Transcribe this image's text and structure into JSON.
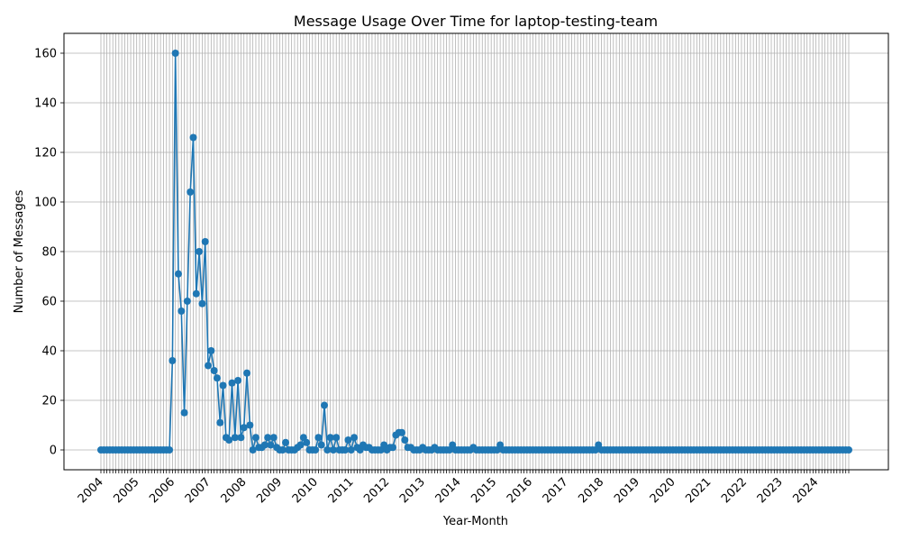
{
  "chart_data": {
    "type": "line",
    "title": "Message Usage Over Time for laptop-testing-team",
    "xlabel": "Year-Month",
    "ylabel": "Number of Messages",
    "x_start": "2004-01",
    "x_end": "2024-12",
    "ylim": [
      -8,
      168
    ],
    "yticks": [
      0,
      20,
      40,
      60,
      80,
      100,
      120,
      140,
      160
    ],
    "xtick_labels": [
      "2004",
      "2005",
      "2006",
      "2007",
      "2008",
      "2009",
      "2010",
      "2011",
      "2012",
      "2013",
      "2014",
      "2015",
      "2016",
      "2017",
      "2018",
      "2019",
      "2020",
      "2021",
      "2022",
      "2023",
      "2024"
    ],
    "grid": true,
    "marker": "circle",
    "color": "#1f77b4",
    "series": [
      {
        "values": [
          0,
          0,
          0,
          0,
          0,
          0,
          0,
          0,
          0,
          0,
          0,
          0,
          0,
          0,
          0,
          0,
          0,
          0,
          0,
          0,
          0,
          0,
          0,
          0,
          36,
          160,
          71,
          56,
          15,
          60,
          104,
          126,
          63,
          80,
          59,
          84,
          34,
          40,
          32,
          29,
          11,
          26,
          5,
          4,
          27,
          5,
          28,
          5,
          9,
          31,
          10,
          0,
          5,
          1,
          1,
          2,
          5,
          2,
          5,
          1,
          0,
          0,
          3,
          0,
          0,
          0,
          1,
          2,
          5,
          3,
          0,
          0,
          0,
          5,
          2,
          18,
          0,
          5,
          0,
          5,
          0,
          0,
          0,
          4,
          0,
          5,
          1,
          0,
          2,
          1,
          1,
          0,
          0,
          0,
          0,
          2,
          0,
          1,
          1,
          6,
          7,
          7,
          4,
          1,
          1,
          0,
          0,
          0,
          1,
          0,
          0,
          0,
          1,
          0,
          0,
          0,
          0,
          0,
          2,
          0,
          0,
          0,
          0,
          0,
          0,
          1,
          0,
          0,
          0,
          0,
          0,
          0,
          0,
          0,
          2,
          0,
          0,
          0,
          0,
          0,
          0,
          0,
          0,
          0,
          0,
          0,
          0,
          0,
          0,
          0,
          0,
          0,
          0,
          0,
          0,
          0,
          0,
          0,
          0,
          0,
          0,
          0,
          0,
          0,
          0,
          0,
          0,
          2,
          0,
          0,
          0,
          0,
          0,
          0,
          0,
          0,
          0,
          0,
          0,
          0,
          0,
          0,
          0,
          0,
          0,
          0,
          0,
          0,
          0,
          0,
          0,
          0,
          0,
          0,
          0,
          0,
          0,
          0,
          0,
          0,
          0,
          0,
          0,
          0,
          0,
          0,
          0,
          0,
          0,
          0,
          0,
          0,
          0,
          0,
          0,
          0,
          0,
          0,
          0,
          0,
          0,
          0,
          0,
          0,
          0,
          0,
          0,
          0,
          0,
          0,
          0,
          0,
          0,
          0,
          0,
          0,
          0,
          0,
          0,
          0,
          0,
          0,
          0,
          0,
          0,
          0,
          0,
          0,
          0,
          0,
          0,
          0
        ]
      }
    ]
  }
}
